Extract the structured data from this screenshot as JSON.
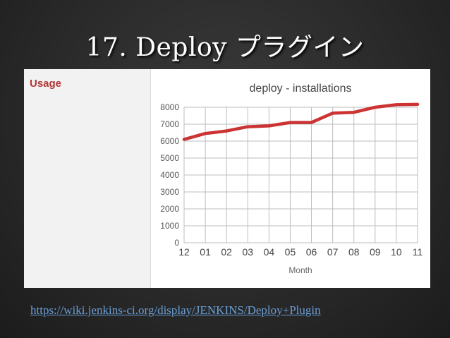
{
  "slide": {
    "title": "17. Deploy プラグイン",
    "link": "https://wiki.jenkins-ci.org/display/JENKINS/Deploy+Plugin"
  },
  "sidebar": {
    "label": "Usage"
  },
  "colors": {
    "line": "#cc3333",
    "usage": "#b23535",
    "link": "#6a9fd8"
  },
  "chart_data": {
    "type": "line",
    "title": "deploy - installations",
    "xlabel": "Month",
    "ylabel": "",
    "categories": [
      "12",
      "01",
      "02",
      "03",
      "04",
      "05",
      "06",
      "07",
      "08",
      "09",
      "10",
      "11"
    ],
    "series": [
      {
        "values": [
          6100,
          6450,
          6600,
          6850,
          6900,
          7100,
          7100,
          7650,
          7700,
          8000,
          8150,
          8170
        ]
      }
    ],
    "ylim": [
      0,
      8000
    ],
    "yticks": [
      0,
      1000,
      2000,
      3000,
      4000,
      5000,
      6000,
      7000,
      8000
    ],
    "grid": true
  }
}
